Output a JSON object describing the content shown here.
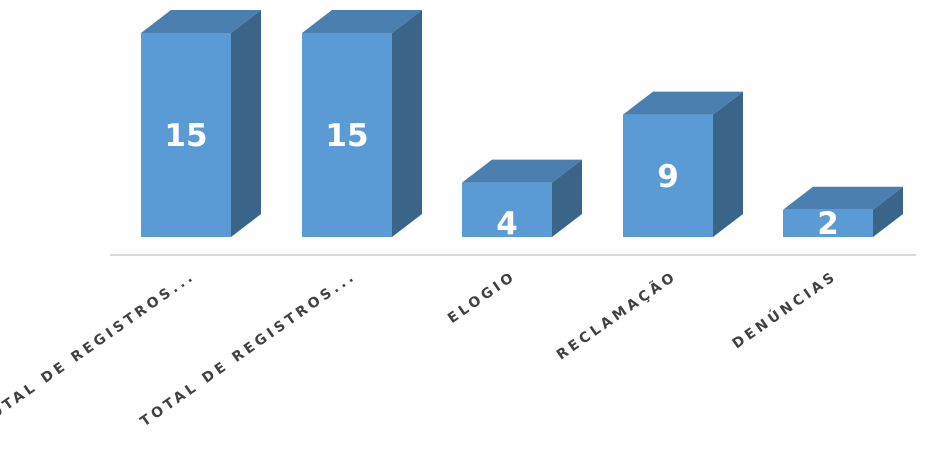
{
  "chart_data": {
    "type": "bar",
    "style": "3d-column",
    "categories": [
      "TOTAL DE REGISTROS...",
      "TOTAL DE REGISTROS...",
      "ELOGIO",
      "RECLAMAÇÃO",
      "DENÚNCIAS"
    ],
    "values": [
      15,
      15,
      4,
      9,
      2
    ],
    "data_labels": [
      "15",
      "15",
      "4",
      "9",
      "2"
    ],
    "ylim": [
      0,
      15
    ],
    "grid": false,
    "legend": "none",
    "colors": {
      "front": "#5B9BD5",
      "top": "#4A7FB0",
      "side": "#3A6589",
      "axis": "#D9D9D9",
      "label_text": "#404040",
      "value_text": "#FFFFFF"
    }
  }
}
